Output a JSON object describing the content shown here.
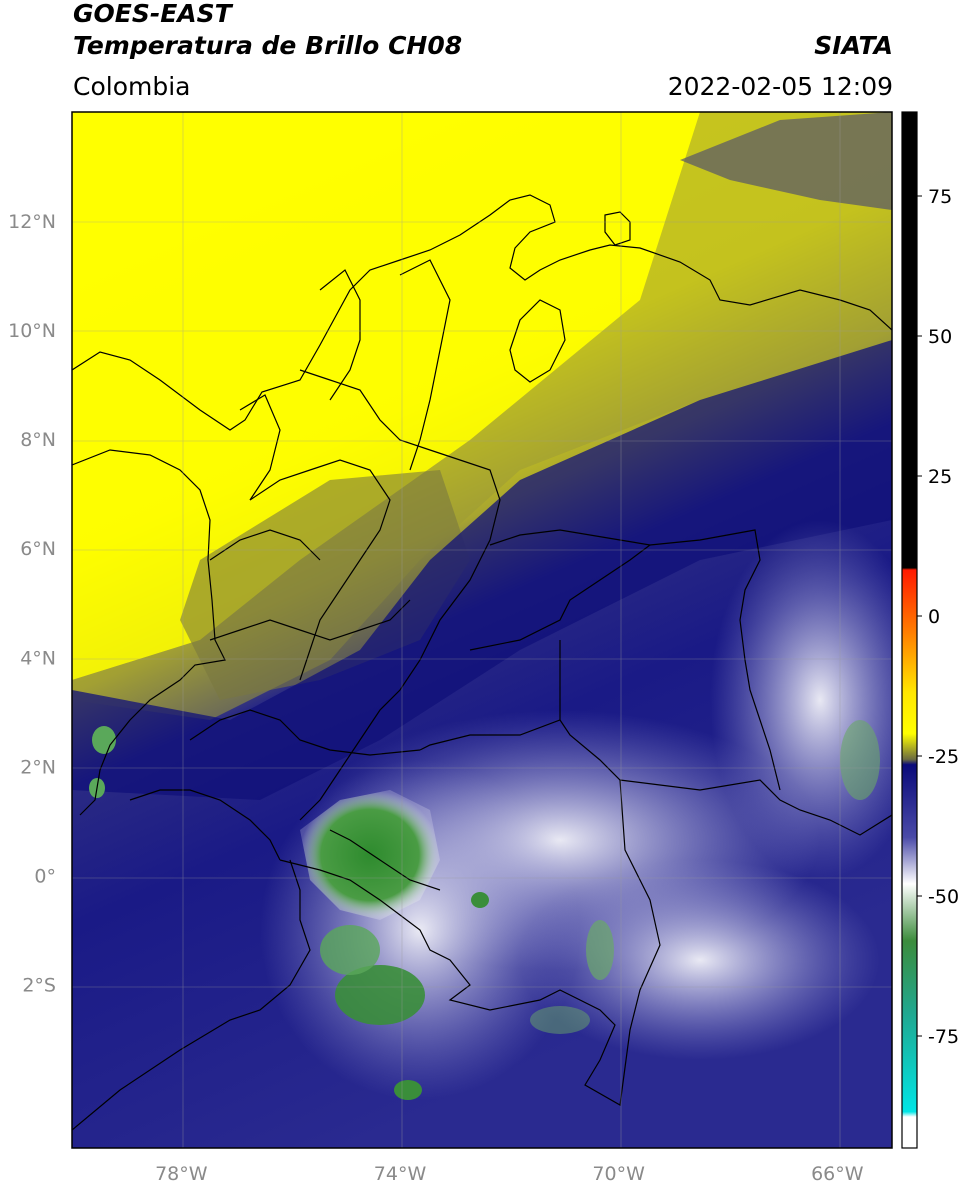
{
  "header": {
    "satellite": "GOES-EAST",
    "product": "Temperatura de Brillo CH08",
    "agency": "SIATA",
    "region": "Colombia",
    "timestamp": "2022-02-05 12:09"
  },
  "map": {
    "lat_ticks": [
      "12°N",
      "10°N",
      "8°N",
      "6°N",
      "4°N",
      "2°N",
      "0°",
      "2°S"
    ],
    "lon_ticks": [
      "78°W",
      "74°W",
      "70°W",
      "66°W"
    ],
    "extent": {
      "lon_min": -80,
      "lon_max": -65,
      "lat_min": -5,
      "lat_max": 14
    }
  },
  "colorbar": {
    "ticks": [
      "75",
      "50",
      "25",
      "0",
      "-25",
      "-50",
      "-75"
    ],
    "range": [
      -95,
      90
    ],
    "colors": {
      "black": "#000000",
      "red": "#ff2a00",
      "orange": "#ff9a00",
      "yellow": "#ffff00",
      "olive": "#888833",
      "navy": "#0a0a7a",
      "lavender": "#a0a0d8",
      "white": "#ffffff",
      "green": "#2e8b2e",
      "teal": "#20b09a",
      "cyan": "#00e5e5"
    }
  }
}
